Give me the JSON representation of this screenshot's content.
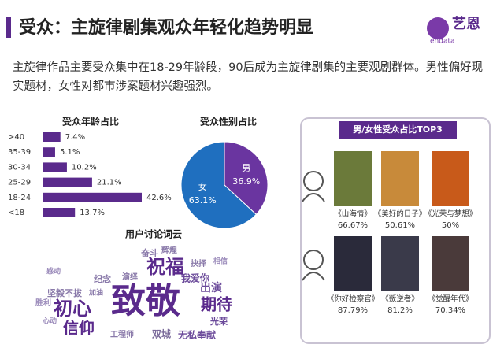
{
  "header": {
    "title": "受众：主旋律剧集观众年轻化趋势明显",
    "brand": "艺恩",
    "brand_sub": "endata"
  },
  "description": "主旋律作品主要受众集中在18-29年龄段，90后成为主旋律剧集的主要观剧群体。男性偏好现实题材，女性对都市涉案题材兴趣强烈。",
  "chart_data": [
    {
      "type": "hbar",
      "title": "受众年龄占比",
      "categories": [
        ">40",
        "35-39",
        "30-34",
        "25-29",
        "18-24",
        "<18"
      ],
      "values": [
        7.4,
        5.1,
        10.2,
        21.1,
        42.6,
        13.7
      ],
      "value_labels": [
        "7.4%",
        "5.1%",
        "10.2%",
        "21.1%",
        "42.6%",
        "13.7%"
      ],
      "color": "#5a2a8c"
    },
    {
      "type": "pie",
      "title": "受众性别占比",
      "categories": [
        "男",
        "女"
      ],
      "values": [
        36.9,
        63.1
      ],
      "value_labels": [
        "36.9%",
        "63.1%"
      ],
      "colors": [
        "#6a35a0",
        "#1f6fbf"
      ]
    }
  ],
  "word_cloud": {
    "title": "用户讨论词云",
    "words": [
      "致敬",
      "祝福",
      "初心",
      "信仰",
      "期待",
      "出演",
      "我爱你",
      "光荣",
      "无私奉献",
      "双城",
      "纪念",
      "演绎",
      "坚毅不拔",
      "加油",
      "奋斗",
      "辉煌",
      "抉择",
      "工程师",
      "心动",
      "感动",
      "相信",
      "胜利"
    ]
  },
  "top3": {
    "title": "男/女性受众占比TOP3",
    "male": [
      {
        "title": "《山海情》",
        "share": "66.67%"
      },
      {
        "title": "《美好的日子》",
        "share": "50.61%"
      },
      {
        "title": "《光荣与梦想》",
        "share": "50%"
      }
    ],
    "female": [
      {
        "title": "《你好检察官》",
        "share": "87.79%"
      },
      {
        "title": "《叛逆者》",
        "share": "81.2%"
      },
      {
        "title": "《觉醒年代》",
        "share": "70.34%"
      }
    ]
  }
}
